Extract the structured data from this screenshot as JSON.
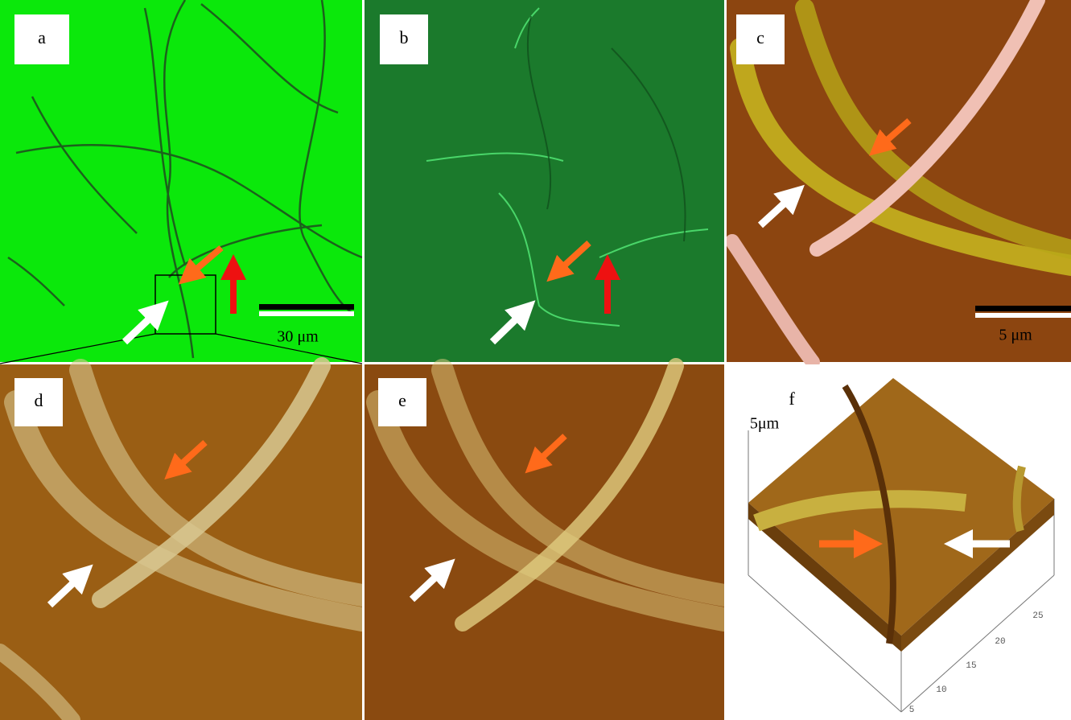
{
  "panels": [
    {
      "label": "a",
      "scale_bar": "30 μm"
    },
    {
      "label": "b"
    },
    {
      "label": "c",
      "scale_bar": "5 μm"
    },
    {
      "label": "d"
    },
    {
      "label": "e"
    },
    {
      "label": "f",
      "z_axis_label": "5μm",
      "axis_ticks": [
        5,
        10,
        15,
        20,
        25
      ]
    }
  ]
}
